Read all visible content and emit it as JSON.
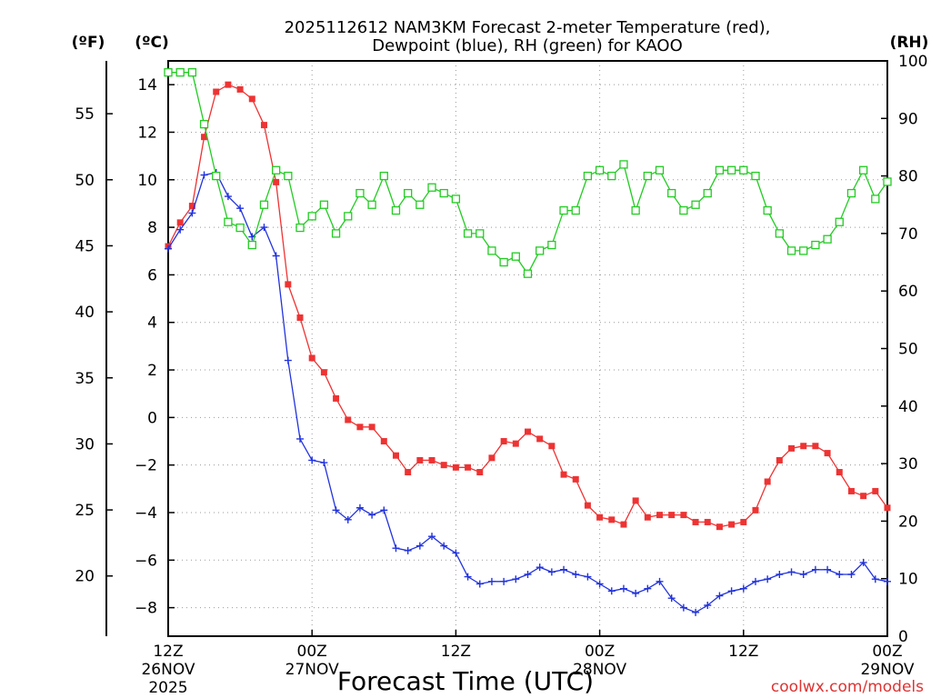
{
  "chart_data": {
    "type": "line",
    "title_line1": "2025112612 NAM3KM Forecast 2-meter Temperature (red),",
    "title_line2": "Dewpoint (blue), RH (green) for KAOO",
    "xlabel": "Forecast Time (UTC)",
    "credit": "coolwx.com/models",
    "unit_f": "(ºF)",
    "unit_c": "(ºC)",
    "unit_rh": "(RH)",
    "hour_range": [
      0,
      60
    ],
    "c_range": [
      -9.2,
      15.0
    ],
    "rh_range": [
      0,
      100
    ],
    "x_ticks": [
      {
        "hour": 0,
        "time": "12Z",
        "date": "26NOV",
        "year": "2025"
      },
      {
        "hour": 12,
        "time": "00Z",
        "date": "27NOV",
        "year": ""
      },
      {
        "hour": 24,
        "time": "12Z",
        "date": "",
        "year": ""
      },
      {
        "hour": 36,
        "time": "00Z",
        "date": "28NOV",
        "year": ""
      },
      {
        "hour": 48,
        "time": "12Z",
        "date": "",
        "year": ""
      },
      {
        "hour": 60,
        "time": "00Z",
        "date": "29NOV",
        "year": ""
      }
    ],
    "c_ticks": [
      14,
      12,
      10,
      8,
      6,
      4,
      2,
      0,
      -2,
      -4,
      -6,
      -8
    ],
    "c_tick_labels": [
      "14",
      "12",
      "10",
      "8",
      "6",
      "4",
      "2",
      "0",
      "−2",
      "−4",
      "−6",
      "−8"
    ],
    "f_ticks": [
      55,
      50,
      45,
      40,
      35,
      30,
      25,
      20
    ],
    "rh_ticks": [
      100,
      90,
      80,
      70,
      60,
      50,
      40,
      30,
      20,
      10,
      0
    ],
    "series": [
      {
        "name": "2-meter Temperature",
        "color": "#ee3333",
        "marker": "square-filled",
        "values": [
          7.2,
          8.2,
          8.9,
          11.8,
          13.7,
          14.0,
          13.8,
          13.4,
          12.3,
          9.9,
          5.6,
          4.2,
          2.5,
          1.9,
          0.8,
          -0.1,
          -0.4,
          -0.4,
          -1.0,
          -1.6,
          -2.3,
          -1.8,
          -1.8,
          -2.0,
          -2.1,
          -2.1,
          -2.3,
          -1.7,
          -1.0,
          -1.1,
          -0.6,
          -0.9,
          -1.2,
          -2.4,
          -2.6,
          -3.7,
          -4.2,
          -4.3,
          -4.5,
          -3.5,
          -4.2,
          -4.1,
          -4.1,
          -4.1,
          -4.4,
          -4.4,
          -4.6,
          -4.5,
          -4.4,
          -3.9,
          -2.7,
          -1.8,
          -1.3,
          -1.2,
          -1.2,
          -1.5,
          -2.3,
          -3.1,
          -3.3,
          -3.1,
          -3.8
        ]
      },
      {
        "name": "Dewpoint",
        "color": "#2233dd",
        "marker": "plus",
        "values": [
          7.1,
          7.9,
          8.6,
          10.2,
          10.3,
          9.3,
          8.8,
          7.6,
          8.0,
          6.8,
          2.4,
          -0.9,
          -1.8,
          -1.9,
          -3.9,
          -4.3,
          -3.8,
          -4.1,
          -3.9,
          -5.5,
          -5.6,
          -5.4,
          -5.0,
          -5.4,
          -5.7,
          -6.7,
          -7.0,
          -6.9,
          -6.9,
          -6.8,
          -6.6,
          -6.3,
          -6.5,
          -6.4,
          -6.6,
          -6.7,
          -7.0,
          -7.3,
          -7.2,
          -7.4,
          -7.2,
          -6.9,
          -7.6,
          -8.0,
          -8.2,
          -7.9,
          -7.5,
          -7.3,
          -7.2,
          -6.9,
          -6.8,
          -6.6,
          -6.5,
          -6.6,
          -6.4,
          -6.4,
          -6.6,
          -6.6,
          -6.1,
          -6.8,
          -6.9
        ]
      },
      {
        "name": "RH",
        "color": "#22cc22",
        "marker": "square-open",
        "values": [
          98,
          98,
          98,
          89,
          80,
          72,
          71,
          68,
          75,
          81,
          80,
          71,
          73,
          75,
          70,
          73,
          77,
          75,
          80,
          74,
          77,
          75,
          78,
          77,
          76,
          70,
          70,
          67,
          65,
          66,
          63,
          67,
          68,
          74,
          74,
          80,
          81,
          80,
          82,
          74,
          80,
          81,
          77,
          74,
          75,
          77,
          81,
          81,
          81,
          80,
          74,
          70,
          67,
          67,
          68,
          69,
          72,
          77,
          81,
          76,
          79
        ]
      }
    ]
  }
}
